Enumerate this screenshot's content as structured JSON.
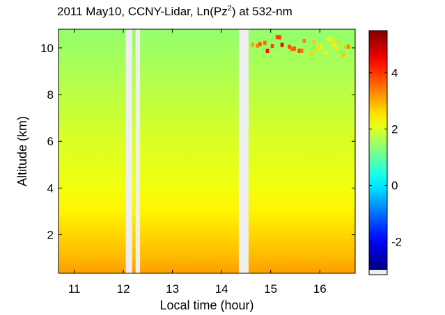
{
  "chart_data": {
    "type": "heatmap",
    "title": {
      "prefix": "2011 May10, CCNY-Lidar, Ln(Pz",
      "superscript": "2",
      "suffix": ") at 532-nm"
    },
    "xlabel": "Local time (hour)",
    "ylabel": "Altitude (km)",
    "xlim": [
      10.68,
      16.72
    ],
    "ylim": [
      0.35,
      10.8
    ],
    "xticks": [
      11,
      12,
      13,
      14,
      15,
      16
    ],
    "yticks": [
      2,
      4,
      6,
      8,
      10
    ],
    "colorbar": {
      "range": [
        -3,
        5.5
      ],
      "ticks": [
        -2,
        0,
        2,
        4
      ],
      "colormap": "jet",
      "nodata_color": "#eeeeee"
    },
    "data_gaps": [
      [
        12.05,
        12.18
      ],
      [
        12.25,
        12.34
      ],
      [
        14.35,
        14.55
      ]
    ],
    "value_profile": [
      {
        "altitude": 0.5,
        "value": 3.1
      },
      {
        "altitude": 1.0,
        "value": 2.9
      },
      {
        "altitude": 2.0,
        "value": 2.65
      },
      {
        "altitude": 3.0,
        "value": 2.4
      },
      {
        "altitude": 4.0,
        "value": 2.2
      },
      {
        "altitude": 6.0,
        "value": 2.0
      },
      {
        "altitude": 8.0,
        "value": 1.75
      },
      {
        "altitude": 10.0,
        "value": 1.5
      },
      {
        "altitude": 10.8,
        "value": 1.4
      }
    ],
    "cloud_layer": {
      "altitude_range": [
        9.6,
        10.4
      ],
      "time_range": [
        14.6,
        16.6
      ],
      "max_value": 5.0
    }
  }
}
